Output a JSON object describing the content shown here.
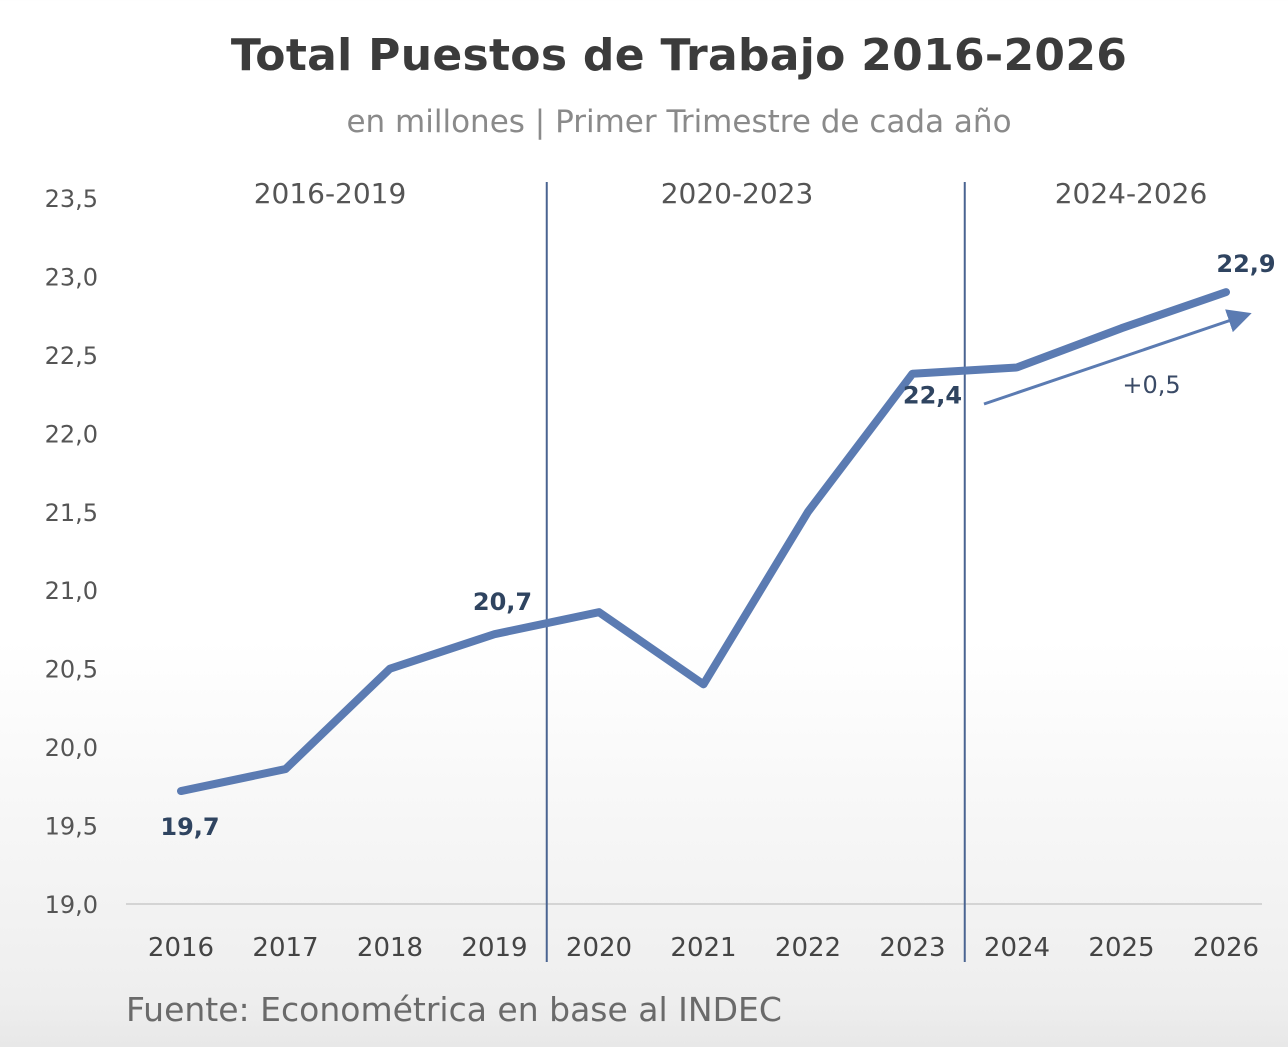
{
  "title": "Total Puestos de Trabajo 2016-2026",
  "subtitle": "en millones | Primer Trimestre de cada año",
  "source": "Fuente: Econométrica en base al INDEC",
  "colors": {
    "line": "#5b7bb2",
    "divider": "#4a6491",
    "label": "#2f4460"
  },
  "chart_data": {
    "type": "line",
    "title": "Total Puestos de Trabajo 2016-2026",
    "subtitle": "en millones | Primer Trimestre de cada año",
    "categories": [
      "2016",
      "2017",
      "2018",
      "2019",
      "2020",
      "2021",
      "2022",
      "2023",
      "2024",
      "2025",
      "2026"
    ],
    "series": [
      {
        "values": [
          19.72,
          19.86,
          20.5,
          20.72,
          20.86,
          20.4,
          21.5,
          22.38,
          22.42,
          22.67,
          22.9
        ]
      }
    ],
    "ylim": [
      19.0,
      23.5
    ],
    "yticks": [
      "19,0",
      "19,5",
      "20,0",
      "20,5",
      "21,0",
      "21,5",
      "22,0",
      "22,5",
      "23,0",
      "23,5"
    ],
    "grid": false,
    "legend": "none",
    "periods": [
      {
        "label": "2016-2019"
      },
      {
        "label": "2020-2023"
      },
      {
        "label": "2024-2026"
      }
    ],
    "period_dividers_between": [
      [
        "2019",
        "2020"
      ],
      [
        "2023",
        "2024"
      ]
    ],
    "data_labels": [
      {
        "category": "2016",
        "text": "19,7"
      },
      {
        "category": "2019",
        "text": "20,7"
      },
      {
        "category": "2023",
        "text": "22,4"
      },
      {
        "category": "2026",
        "text": "22,9"
      }
    ],
    "annotation": {
      "text": "+0,5",
      "from": "2024",
      "to": "2026"
    }
  }
}
